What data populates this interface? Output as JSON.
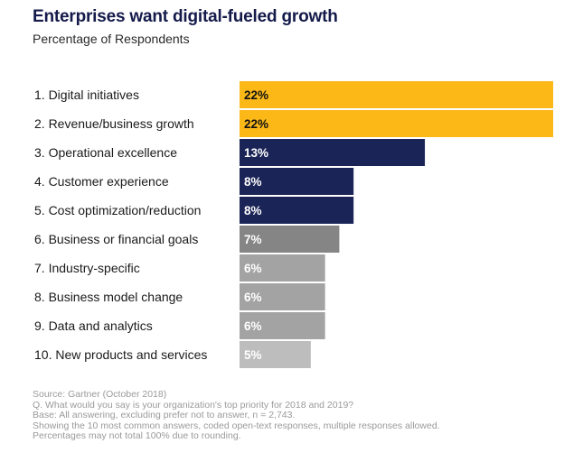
{
  "chart_data": {
    "type": "bar",
    "orientation": "horizontal",
    "title": "Enterprises want digital-fueled growth",
    "subtitle": "Percentage of Respondents",
    "categories": [
      "1. Digital initiatives",
      "2. Revenue/business growth",
      "3. Operational excellence",
      "4. Customer experience",
      "5. Cost optimization/reduction",
      "6. Business or financial goals",
      "7. Industry-specific",
      "8. Business model change",
      "9. Data and analytics",
      "10. New products and services"
    ],
    "values": [
      22,
      22,
      13,
      8,
      8,
      7,
      6,
      6,
      6,
      5
    ],
    "value_labels": [
      "22%",
      "22%",
      "13%",
      "8%",
      "8%",
      "7%",
      "6%",
      "6%",
      "6%",
      "5%"
    ],
    "bar_colors": [
      "#fbb817",
      "#fbb817",
      "#1a2456",
      "#1a2456",
      "#1a2456",
      "#858585",
      "#a3a3a3",
      "#a3a3a3",
      "#a3a3a3",
      "#bdbdbd"
    ],
    "label_colors": [
      "#111111",
      "#111111",
      "#ffffff",
      "#ffffff",
      "#ffffff",
      "#ffffff",
      "#ffffff",
      "#ffffff",
      "#ffffff",
      "#ffffff"
    ],
    "xlim": [
      0,
      22
    ],
    "grid": false,
    "legend": "none"
  },
  "footnotes": [
    "Source: Gartner (October 2018)",
    "Q. What would you say is your organization's top priority for 2018 and 2019?",
    "Base: All answering, excluding prefer not to answer, n = 2,743.",
    "Showing the 10 most common answers, coded open-text responses, multiple responses allowed.",
    "Percentages may not total 100% due to rounding."
  ]
}
